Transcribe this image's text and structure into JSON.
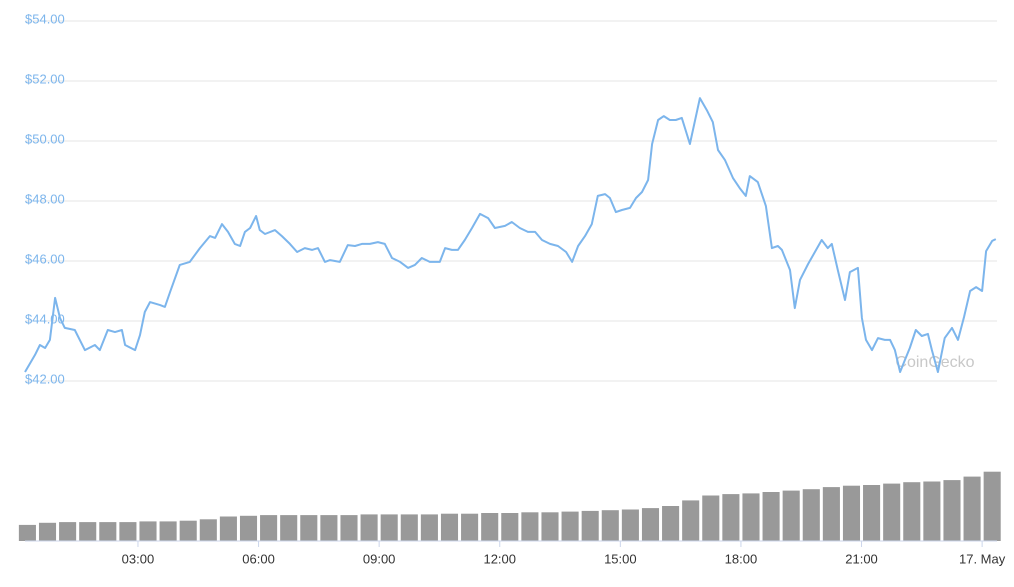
{
  "chart_data": {
    "type": "line",
    "watermark": "CoinGecko",
    "xlim": [
      0.19,
      24.37
    ],
    "xticks": [
      {
        "value": 3,
        "label": "03:00"
      },
      {
        "value": 6,
        "label": "06:00"
      },
      {
        "value": 9,
        "label": "09:00"
      },
      {
        "value": 12,
        "label": "12:00"
      },
      {
        "value": 15,
        "label": "15:00"
      },
      {
        "value": 18,
        "label": "18:00"
      },
      {
        "value": 21,
        "label": "21:00"
      },
      {
        "value": 24,
        "label": "17. May"
      }
    ],
    "ylim": [
      42,
      54
    ],
    "yticks": [
      {
        "value": 42,
        "label": "$42.00"
      },
      {
        "value": 44,
        "label": "$44.00"
      },
      {
        "value": 46,
        "label": "$46.00"
      },
      {
        "value": 48,
        "label": "$48.00"
      },
      {
        "value": 50,
        "label": "$50.00"
      },
      {
        "value": 52,
        "label": "$52.00"
      },
      {
        "value": 54,
        "label": "$54.00"
      }
    ],
    "y2lim": [
      0,
      100
    ],
    "grid": true,
    "series": [
      {
        "color": "#7cb5ec",
        "x": [
          0.19,
          0.44,
          0.56,
          0.69,
          0.81,
          0.94,
          1.06,
          1.18,
          1.43,
          1.68,
          1.93,
          2.05,
          2.25,
          2.43,
          2.6,
          2.68,
          2.93,
          3.05,
          3.17,
          3.3,
          3.55,
          3.67,
          3.8,
          4.04,
          4.29,
          4.54,
          4.79,
          4.92,
          5.09,
          5.24,
          5.41,
          5.54,
          5.66,
          5.79,
          5.94,
          6.03,
          6.16,
          6.41,
          6.58,
          6.78,
          6.96,
          7.15,
          7.33,
          7.48,
          7.65,
          7.78,
          8.02,
          8.22,
          8.4,
          8.57,
          8.77,
          8.97,
          9.14,
          9.32,
          9.52,
          9.72,
          9.89,
          10.06,
          10.26,
          10.51,
          10.64,
          10.81,
          10.96,
          11.13,
          11.31,
          11.51,
          11.71,
          11.88,
          12.13,
          12.3,
          12.5,
          12.7,
          12.88,
          13.05,
          13.25,
          13.45,
          13.65,
          13.8,
          13.95,
          14.12,
          14.29,
          14.44,
          14.62,
          14.74,
          14.89,
          15.04,
          15.24,
          15.39,
          15.54,
          15.69,
          15.79,
          15.94,
          16.08,
          16.23,
          16.38,
          16.53,
          16.73,
          16.98,
          17.15,
          17.3,
          17.43,
          17.6,
          17.8,
          17.97,
          18.12,
          18.22,
          18.42,
          18.62,
          18.77,
          18.92,
          19.02,
          19.22,
          19.34,
          19.47,
          19.67,
          19.84,
          20.01,
          20.16,
          20.26,
          20.41,
          20.59,
          20.71,
          20.91,
          21.01,
          21.11,
          21.26,
          21.41,
          21.58,
          21.71,
          21.83,
          21.96,
          22.08,
          22.2,
          22.35,
          22.5,
          22.65,
          22.75,
          22.9,
          23.07,
          23.25,
          23.4,
          23.55,
          23.7,
          23.85,
          24.0,
          24.1,
          24.25,
          24.34
        ],
        "values": [
          42.3,
          42.87,
          43.2,
          43.1,
          43.37,
          44.77,
          44.1,
          43.77,
          43.7,
          43.03,
          43.2,
          43.03,
          43.7,
          43.63,
          43.7,
          43.2,
          43.03,
          43.53,
          44.3,
          44.63,
          44.53,
          44.47,
          44.97,
          45.87,
          45.97,
          46.43,
          46.83,
          46.77,
          47.23,
          46.97,
          46.57,
          46.5,
          46.97,
          47.1,
          47.5,
          47.03,
          46.9,
          47.03,
          46.83,
          46.57,
          46.3,
          46.43,
          46.37,
          46.43,
          45.97,
          46.03,
          45.97,
          46.53,
          46.5,
          46.57,
          46.57,
          46.63,
          46.57,
          46.1,
          45.97,
          45.77,
          45.87,
          46.1,
          45.97,
          45.97,
          46.43,
          46.37,
          46.37,
          46.7,
          47.1,
          47.57,
          47.43,
          47.1,
          47.17,
          47.3,
          47.1,
          46.97,
          46.97,
          46.7,
          46.57,
          46.5,
          46.3,
          45.97,
          46.5,
          46.83,
          47.23,
          48.17,
          48.23,
          48.1,
          47.63,
          47.7,
          47.77,
          48.1,
          48.3,
          48.7,
          49.9,
          50.7,
          50.83,
          50.7,
          50.7,
          50.77,
          49.9,
          51.43,
          51.03,
          50.63,
          49.7,
          49.37,
          48.77,
          48.43,
          48.17,
          48.83,
          48.63,
          47.83,
          46.43,
          46.5,
          46.37,
          45.7,
          44.43,
          45.37,
          45.9,
          46.3,
          46.7,
          46.43,
          46.57,
          45.7,
          44.7,
          45.63,
          45.77,
          44.1,
          43.37,
          43.03,
          43.43,
          43.37,
          43.37,
          43.03,
          42.3,
          42.7,
          43.1,
          43.7,
          43.5,
          43.57,
          43.03,
          42.3,
          43.43,
          43.77,
          43.37,
          44.13,
          45.0,
          45.13,
          45.0,
          46.33,
          46.67,
          46.73
        ]
      },
      {
        "type": "bar",
        "axis": "y2",
        "color": "#999999",
        "x": [
          0.25,
          0.75,
          1.25,
          1.75,
          2.25,
          2.75,
          3.25,
          3.75,
          4.25,
          4.75,
          5.25,
          5.75,
          6.25,
          6.75,
          7.25,
          7.75,
          8.25,
          8.75,
          9.25,
          9.75,
          10.25,
          10.75,
          11.25,
          11.75,
          12.25,
          12.75,
          13.25,
          13.75,
          14.25,
          14.75,
          15.25,
          15.75,
          16.25,
          16.75,
          17.25,
          17.75,
          18.25,
          18.75,
          19.25,
          19.75,
          20.25,
          20.75,
          21.25,
          21.75,
          22.25,
          22.75,
          23.25,
          23.75,
          24.25
        ],
        "values": [
          23,
          26,
          27,
          27,
          27,
          27,
          28,
          28,
          29,
          31,
          35,
          36,
          37,
          37,
          37,
          37,
          37,
          38,
          38,
          38,
          38,
          39,
          39,
          40,
          40,
          41,
          41,
          42,
          43,
          44,
          45,
          47,
          50,
          58,
          65,
          67,
          68,
          70,
          72,
          74,
          77,
          79,
          80,
          82,
          84,
          85,
          87,
          92,
          99
        ]
      }
    ]
  }
}
